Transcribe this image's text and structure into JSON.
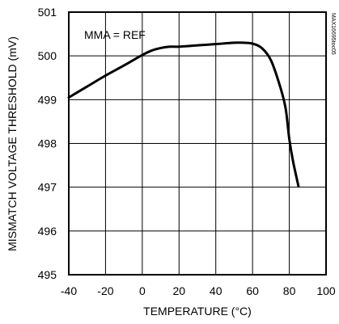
{
  "chart_data": {
    "type": "line",
    "title": "",
    "xlabel": "TEMPERATURE (°C)",
    "ylabel": "MISMATCH VOLTAGE THRESHOLD (mV)",
    "xlim": [
      -40,
      100
    ],
    "ylim": [
      495,
      501
    ],
    "x_ticks": [
      "-40",
      "-20",
      "0",
      "20",
      "40",
      "60",
      "80",
      "100"
    ],
    "y_ticks": [
      "495",
      "496",
      "497",
      "498",
      "499",
      "500",
      "501"
    ],
    "grid": true,
    "annotation": "MMA = REF",
    "watermark": "MAX16695toc05",
    "series": [
      {
        "x": [
          -40,
          -30,
          -20,
          -10,
          0,
          5,
          10,
          15,
          20,
          30,
          40,
          50,
          55,
          60,
          65,
          70,
          75,
          78,
          80,
          82,
          85
        ],
        "y": [
          499.05,
          499.3,
          499.55,
          499.78,
          500.02,
          500.12,
          500.18,
          500.21,
          500.21,
          500.24,
          500.27,
          500.3,
          500.3,
          500.28,
          500.18,
          499.9,
          499.3,
          498.8,
          498.1,
          497.6,
          497.02
        ]
      }
    ]
  }
}
